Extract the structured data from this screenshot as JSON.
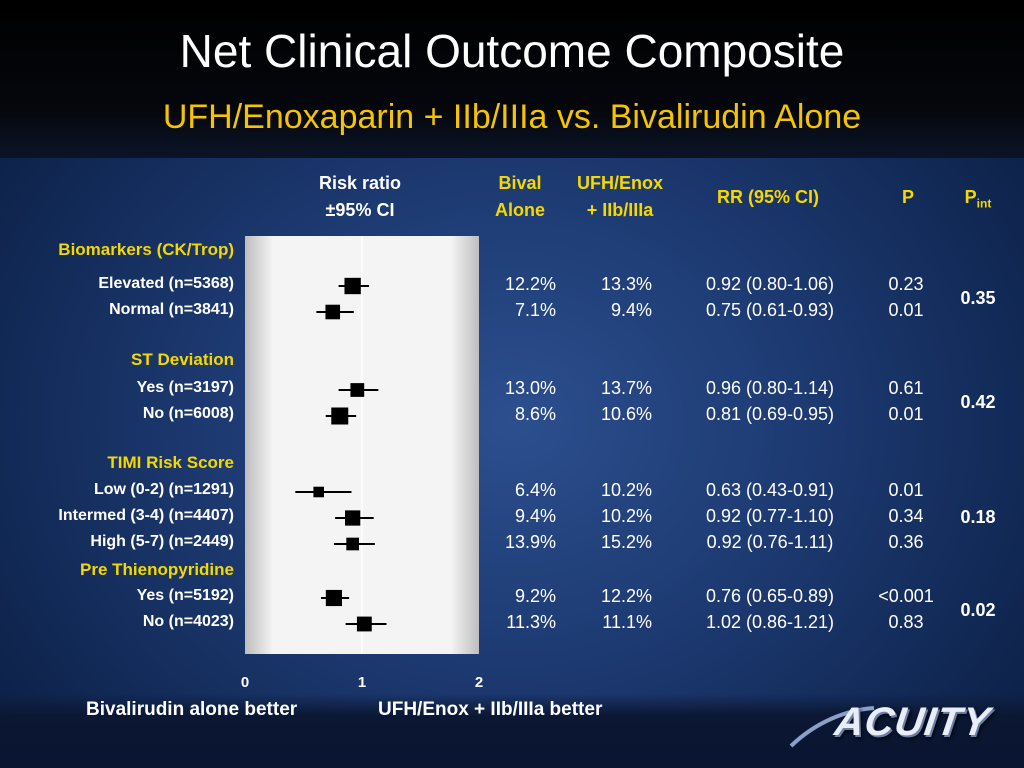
{
  "title": "Net Clinical Outcome Composite",
  "subtitle": "UFH/Enoxaparin + IIb/IIIa vs. Bivalirudin Alone",
  "headers": {
    "risk_ratio_line1": "Risk ratio",
    "risk_ratio_line2": "±95% CI",
    "bival_line1": "Bival",
    "bival_line2": "Alone",
    "ufh_line1": "UFH/Enox",
    "ufh_line2": "+ IIb/IIIa",
    "rr": "RR (95% CI)",
    "p": "P",
    "pint_main": "P",
    "pint_sub": "int"
  },
  "footer": {
    "left": "Bivalirudin alone better",
    "right": "UFH/Enox + IIb/IIIa better",
    "logo": "ACUITY"
  },
  "colors": {
    "group_label": "#f5d800",
    "background": "#1d3a72",
    "plot_panel": "#f2f2f2"
  },
  "chart_data": {
    "type": "forest",
    "xlim": [
      0,
      2
    ],
    "x_ticks": [
      "0",
      "1",
      "2"
    ],
    "reference_line": 1,
    "groups": [
      {
        "name": "Biomarkers (CK/Trop)",
        "p_int": "0.35",
        "rows": [
          {
            "label": "Elevated (n=5368)",
            "bival": "12.2%",
            "ufh": "13.3%",
            "rr_text": "0.92 (0.80-1.06)",
            "p": "0.23",
            "rr": 0.92,
            "lo": 0.8,
            "hi": 1.06,
            "weight": 5368
          },
          {
            "label": "Normal (n=3841)",
            "bival": "7.1%",
            "ufh": "9.4%",
            "rr_text": "0.75 (0.61-0.93)",
            "p": "0.01",
            "rr": 0.75,
            "lo": 0.61,
            "hi": 0.93,
            "weight": 3841
          }
        ]
      },
      {
        "name": "ST Deviation",
        "p_int": "0.42",
        "rows": [
          {
            "label": "Yes (n=3197)",
            "bival": "13.0%",
            "ufh": "13.7%",
            "rr_text": "0.96 (0.80-1.14)",
            "p": "0.61",
            "rr": 0.96,
            "lo": 0.8,
            "hi": 1.14,
            "weight": 3197
          },
          {
            "label": "No (n=6008)",
            "bival": "8.6%",
            "ufh": "10.6%",
            "rr_text": "0.81 (0.69-0.95)",
            "p": "0.01",
            "rr": 0.81,
            "lo": 0.69,
            "hi": 0.95,
            "weight": 6008
          }
        ]
      },
      {
        "name": "TIMI Risk Score",
        "p_int": "0.18",
        "rows": [
          {
            "label": "Low (0-2) (n=1291)",
            "bival": "6.4%",
            "ufh": "10.2%",
            "rr_text": "0.63 (0.43-0.91)",
            "p": "0.01",
            "rr": 0.63,
            "lo": 0.43,
            "hi": 0.91,
            "weight": 1291
          },
          {
            "label": "Intermed (3-4) (n=4407)",
            "bival": "9.4%",
            "ufh": "10.2%",
            "rr_text": "0.92 (0.77-1.10)",
            "p": "0.34",
            "rr": 0.92,
            "lo": 0.77,
            "hi": 1.1,
            "weight": 4407
          },
          {
            "label": "High (5-7) (n=2449)",
            "bival": "13.9%",
            "ufh": "15.2%",
            "rr_text": "0.92 (0.76-1.11)",
            "p": "0.36",
            "rr": 0.92,
            "lo": 0.76,
            "hi": 1.11,
            "weight": 2449
          }
        ]
      },
      {
        "name": "Pre Thienopyridine",
        "p_int": "0.02",
        "rows": [
          {
            "label": "Yes (n=5192)",
            "bival": "9.2%",
            "ufh": "12.2%",
            "rr_text": "0.76 (0.65-0.89)",
            "p": "<0.001",
            "rr": 0.76,
            "lo": 0.65,
            "hi": 0.89,
            "weight": 5192
          },
          {
            "label": "No (n=4023)",
            "bival": "11.3%",
            "ufh": "11.1%",
            "rr_text": "1.02 (0.86-1.21)",
            "p": "0.83",
            "rr": 1.02,
            "lo": 0.86,
            "hi": 1.21,
            "weight": 4023
          }
        ]
      }
    ]
  }
}
